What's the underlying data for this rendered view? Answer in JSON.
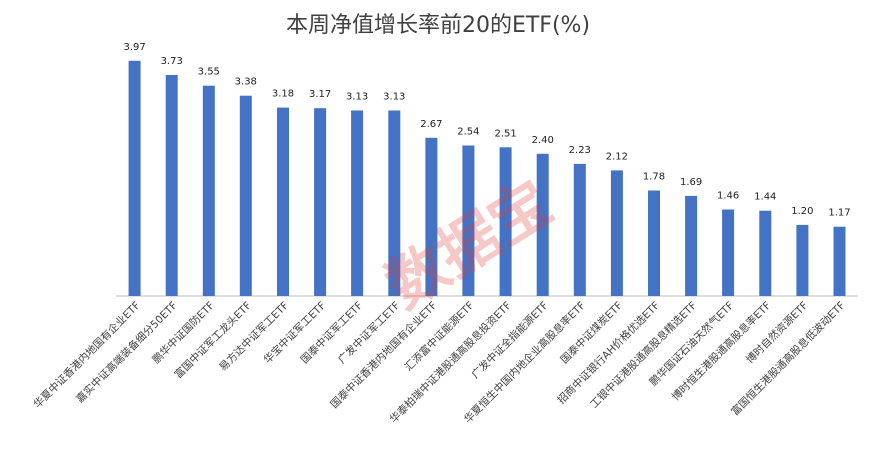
{
  "chart_data": {
    "type": "bar",
    "title": "本周净值增长率前20的ETF(%)",
    "xlabel": "",
    "ylabel": "",
    "ylim": [
      0,
      4
    ],
    "grid": false,
    "legend": "none",
    "bar_color": "#4472c4",
    "categories": [
      "华夏中证香港内地国有企业ETF",
      "嘉实中证高端装备细分50ETF",
      "鹏华中证国防ETF",
      "富国中证军工龙头ETF",
      "易方达中证军工ETF",
      "华宝中证军工ETF",
      "国泰中证军工ETF",
      "广发中证军工ETF",
      "国泰中证香港内地国有企业ETF",
      "汇添富中证能源ETF",
      "华泰柏瑞中证港股通高股息投资ETF",
      "广发中证全指能源ETF",
      "华夏恒生中国内地企业高股息率ETF",
      "国泰中证煤炭ETF",
      "招商中证银行AH价格优选ETF",
      "工银中证港股通高股息精选ETF",
      "鹏华国证石油天然气ETF",
      "博时恒生港股通高股息率ETF",
      "博时自然资源ETF",
      "富国恒生港股通高股息低波动ETF"
    ],
    "values": [
      3.97,
      3.73,
      3.55,
      3.38,
      3.18,
      3.17,
      3.13,
      3.13,
      2.67,
      2.54,
      2.51,
      2.4,
      2.23,
      2.12,
      1.78,
      1.69,
      1.46,
      1.44,
      1.2,
      1.17
    ],
    "value_labels": [
      "3.97",
      "3.73",
      "3.55",
      "3.38",
      "3.18",
      "3.17",
      "3.13",
      "3.13",
      "2.67",
      "2.54",
      "2.51",
      "2.40",
      "2.23",
      "2.12",
      "1.78",
      "1.69",
      "1.46",
      "1.44",
      "1.20",
      "1.17"
    ]
  },
  "watermark": {
    "text": "数据宝",
    "color": "#e23b3b"
  }
}
